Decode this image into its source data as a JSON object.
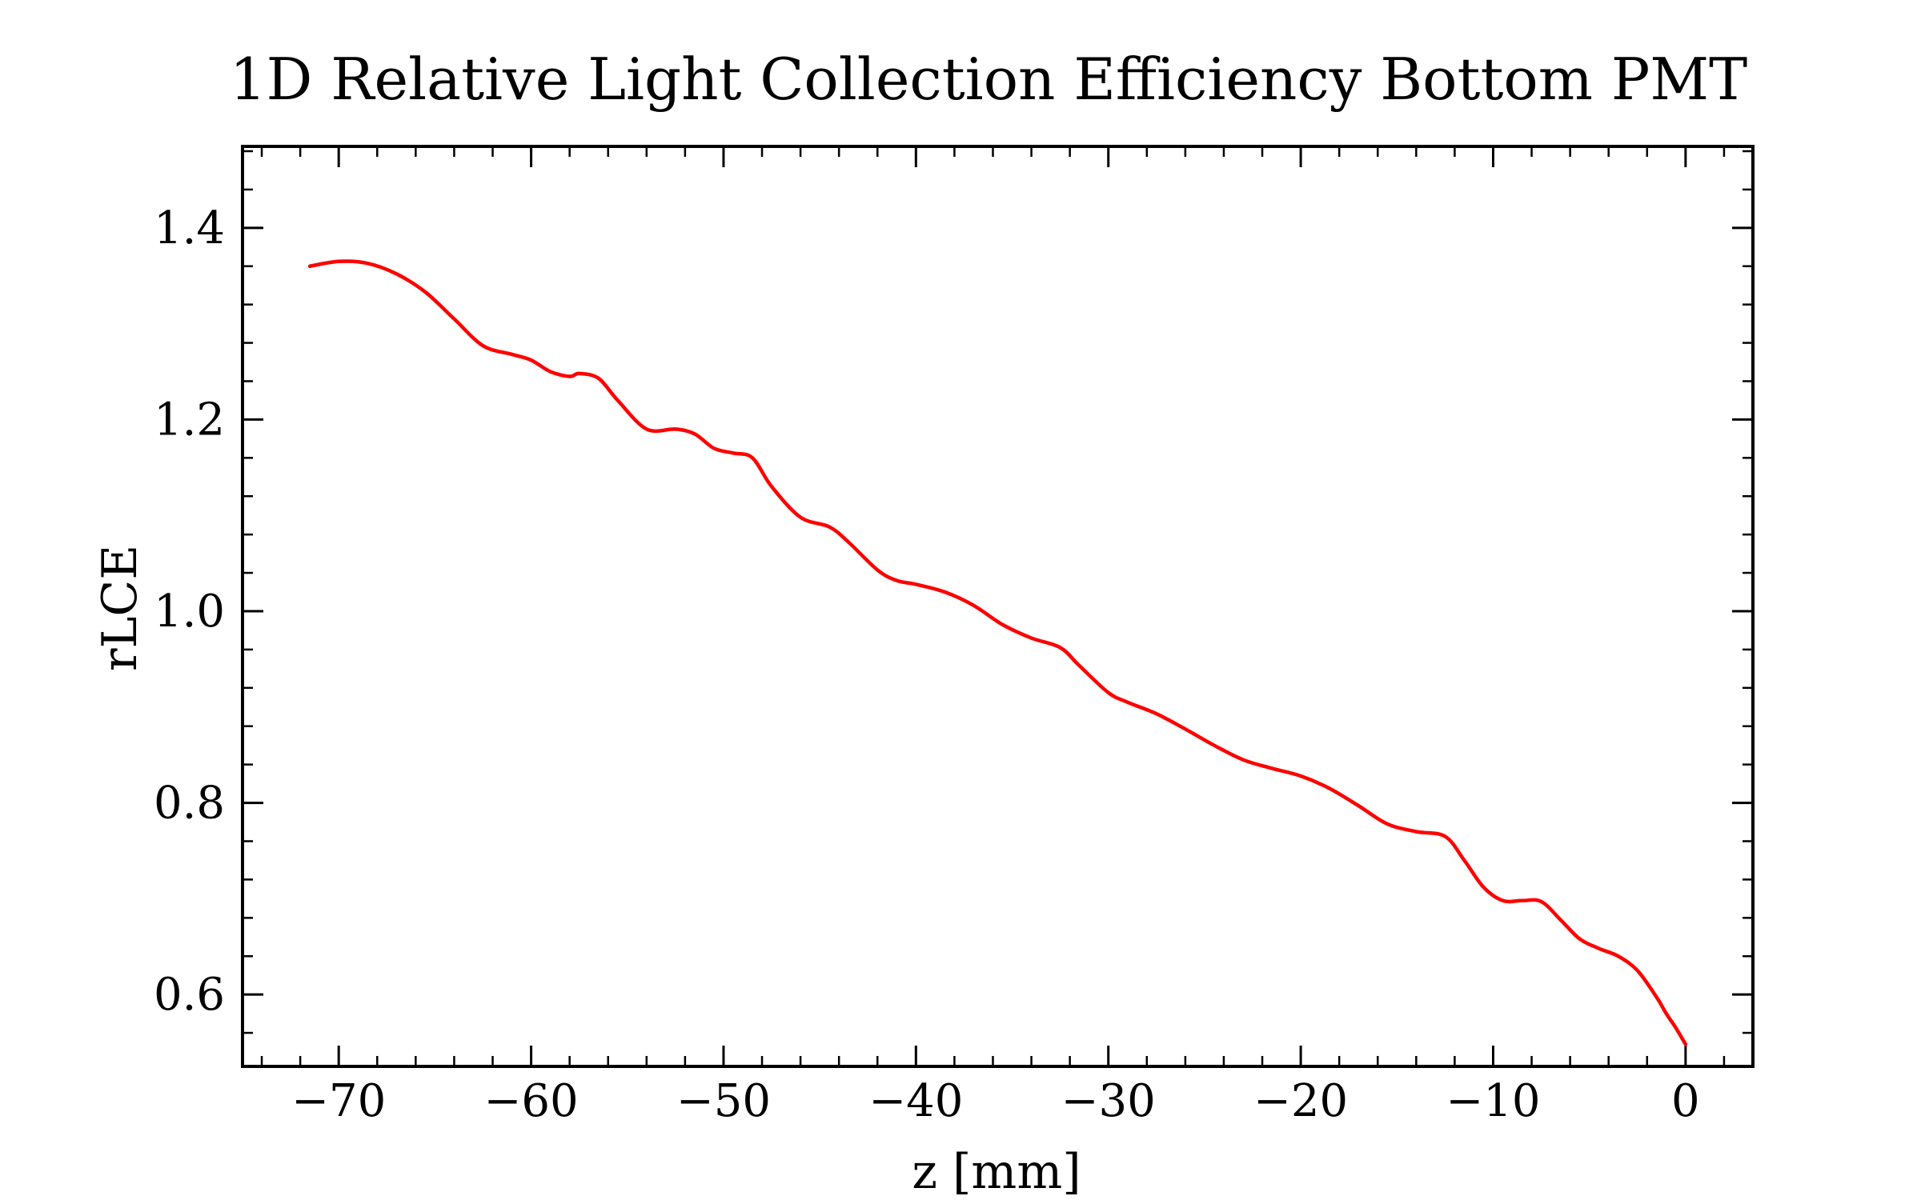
{
  "chart_data": {
    "type": "line",
    "title": "1D Relative Light Collection Efficiency Bottom PMT",
    "xlabel": "z [mm]",
    "ylabel": "rLCE",
    "xlim": [
      -75,
      3.5
    ],
    "ylim": [
      0.525,
      1.485
    ],
    "x_ticks": [
      -70,
      -60,
      -50,
      -40,
      -30,
      -20,
      -10,
      0
    ],
    "x_tick_labels": [
      "−70",
      "−60",
      "−50",
      "−40",
      "−30",
      "−20",
      "−10",
      "0"
    ],
    "y_ticks": [
      0.6,
      0.8,
      1.0,
      1.2,
      1.4
    ],
    "y_tick_labels": [
      "0.6",
      "0.8",
      "1.0",
      "1.2",
      "1.4"
    ],
    "grid": false,
    "legend": "none",
    "line_color": "#ff0000",
    "series": [
      {
        "x": [
          -71.5,
          -70.0,
          -68.5,
          -67.0,
          -65.5,
          -64.0,
          -62.5,
          -61.0,
          -60.0,
          -59.0,
          -58.0,
          -57.5,
          -56.5,
          -55.5,
          -54.0,
          -52.5,
          -51.5,
          -50.5,
          -49.5,
          -48.5,
          -47.5,
          -46.0,
          -44.5,
          -43.5,
          -42.0,
          -41.0,
          -40.0,
          -38.5,
          -37.0,
          -35.5,
          -34.0,
          -32.5,
          -31.5,
          -30.0,
          -29.0,
          -27.5,
          -26.0,
          -24.5,
          -23.0,
          -21.5,
          -20.0,
          -18.5,
          -17.0,
          -15.5,
          -14.0,
          -12.5,
          -11.5,
          -10.5,
          -9.5,
          -8.5,
          -7.5,
          -6.5,
          -5.5,
          -4.5,
          -3.5,
          -2.5,
          -1.5,
          -1.0,
          -0.5,
          0.0
        ],
        "y": [
          1.36,
          1.365,
          1.363,
          1.352,
          1.333,
          1.305,
          1.277,
          1.268,
          1.262,
          1.25,
          1.245,
          1.248,
          1.243,
          1.22,
          1.19,
          1.19,
          1.185,
          1.17,
          1.165,
          1.16,
          1.13,
          1.098,
          1.088,
          1.072,
          1.043,
          1.032,
          1.028,
          1.02,
          1.006,
          0.986,
          0.972,
          0.962,
          0.943,
          0.915,
          0.905,
          0.893,
          0.877,
          0.86,
          0.845,
          0.836,
          0.828,
          0.815,
          0.797,
          0.778,
          0.77,
          0.765,
          0.74,
          0.712,
          0.698,
          0.698,
          0.697,
          0.678,
          0.658,
          0.648,
          0.64,
          0.625,
          0.597,
          0.58,
          0.565,
          0.548
        ]
      }
    ]
  }
}
